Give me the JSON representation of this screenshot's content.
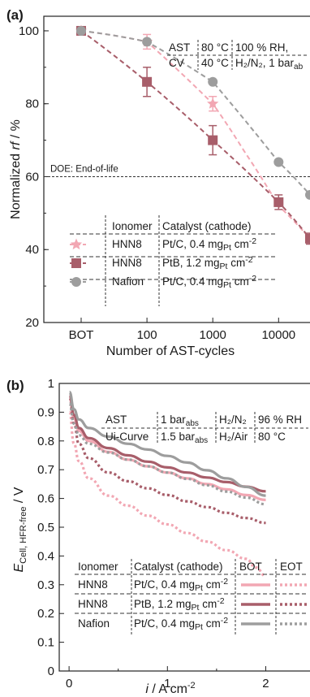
{
  "colors": {
    "hnn8_ptc": "#f2a7b3",
    "hnn8_ptb": "#a85e6a",
    "nafion": "#9d9d9d",
    "axis": "#222222"
  },
  "chart_data": [
    {
      "type": "scatter",
      "panel_label": "(a)",
      "xlabel": "Number of AST-cycles",
      "ylabel_italic": "rf",
      "ylabel_prefix": "Normalized ",
      "ylabel_suffix": " / %",
      "x_scale": "log",
      "x_tick_labels": [
        "BOT",
        "100",
        "1000",
        "10000"
      ],
      "x_ticks": [
        10,
        100,
        1000,
        10000
      ],
      "xlim": [
        10,
        30000
      ],
      "y_ticks": [
        20,
        40,
        60,
        80,
        100
      ],
      "ylim": [
        20,
        104
      ],
      "grid": false,
      "reference_line": {
        "y": 60,
        "label": "DOE: End-of-life"
      },
      "conditions": [
        [
          "AST",
          "80 °C",
          "100 % RH,"
        ],
        [
          "CV",
          "40 °C",
          "H2/N2, 1 bar_abs"
        ]
      ],
      "conditions_display": [
        [
          "AST",
          "80 °C",
          "100 % RH,"
        ],
        [
          "CV",
          "40 °C",
          "H₂/N₂, 1 bar"
        ]
      ],
      "conditions_sub": "ab",
      "legend_headers": [
        "Ionomer",
        "Catalyst (cathode)"
      ],
      "series": [
        {
          "name": "HNN8",
          "catalyst": "Pt/C, 0.4 mg",
          "catalyst_sub": "Pt",
          "catalyst_unit": " cm",
          "catalyst_sup": "-2",
          "marker": "star",
          "color_key": "hnn8_ptc",
          "x": [
            10,
            100,
            1000
          ],
          "y": [
            100,
            97,
            80
          ],
          "yerr": [
            0,
            2,
            2
          ],
          "fit": [
            [
              10,
              100
            ],
            [
              100,
              97
            ],
            [
              1000,
              80
            ],
            [
              3000,
              67
            ],
            [
              10000,
              52
            ],
            [
              30000,
              43
            ]
          ]
        },
        {
          "name": "HNN8",
          "catalyst": "PtB,  1.2 mg",
          "catalyst_sub": "Pt",
          "catalyst_unit": " cm",
          "catalyst_sup": "-2",
          "marker": "square",
          "color_key": "hnn8_ptb",
          "x": [
            10,
            100,
            1000,
            10000,
            30000
          ],
          "y": [
            100,
            86,
            70,
            53,
            43
          ],
          "yerr": [
            0,
            4,
            4,
            2,
            1.5
          ],
          "fit": [
            [
              10,
              100
            ],
            [
              100,
              86
            ],
            [
              1000,
              70
            ],
            [
              10000,
              53
            ],
            [
              30000,
              43
            ]
          ]
        },
        {
          "name": "Nafion",
          "catalyst": "Pt/C, 0.4 mg",
          "catalyst_sub": "Pt",
          "catalyst_unit": " cm",
          "catalyst_sup": "-2",
          "marker": "circle",
          "color_key": "nafion",
          "x": [
            10,
            100,
            1000,
            10000,
            30000
          ],
          "y": [
            100,
            97,
            86,
            64,
            55
          ],
          "yerr": [
            0,
            0,
            0,
            0,
            0
          ],
          "fit": [
            [
              10,
              100
            ],
            [
              100,
              97
            ],
            [
              1000,
              86
            ],
            [
              10000,
              64
            ],
            [
              30000,
              55
            ]
          ]
        }
      ]
    },
    {
      "type": "line",
      "panel_label": "(b)",
      "xlabel_italic": "i",
      "xlabel_suffix": " / A cm",
      "xlabel_sup": "-2",
      "ylabel_main": "E",
      "ylabel_sub": "Cell, HFR-free",
      "ylabel_suffix": " / V",
      "xlim": [
        -0.1,
        2.45
      ],
      "x_ticks": [
        0,
        1,
        2
      ],
      "ylim": [
        0,
        1.0
      ],
      "y_ticks": [
        0,
        0.1,
        0.2,
        0.3,
        0.4,
        0.5,
        0.6,
        0.7,
        0.8,
        0.9,
        1
      ],
      "y_tick_labels": [
        "0",
        "0.1",
        "0.2",
        "0.3",
        "0.4",
        "0.5",
        "0.6",
        "0.7",
        "0.8",
        "0.9",
        "1"
      ],
      "grid": false,
      "conditions": [
        [
          "AST",
          "1 bar_abs",
          "H2/N2",
          "96 % RH"
        ],
        [
          "Ui-Curve",
          "1.5 bar_abs",
          "H2/Air",
          "80 °C"
        ]
      ],
      "conditions_display": [
        [
          "AST",
          "1 bar",
          "H₂/N₂",
          "96 % RH"
        ],
        [
          "Ui-Curve",
          "1.5 bar",
          "H₂/Air",
          "80 °C"
        ]
      ],
      "conditions_sub": "abs",
      "legend_headers": [
        "Ionomer",
        "Catalyst (cathode)",
        "BOT",
        "EOT"
      ],
      "legend_rows": [
        {
          "ionomer": "HNN8",
          "catalyst": "Pt/C, 0.4 mg",
          "catalyst_sub": "Pt",
          "catalyst_unit": " cm",
          "catalyst_sup": "-2",
          "color_key": "hnn8_ptc"
        },
        {
          "ionomer": "HNN8",
          "catalyst": "PtB,  1.2 mg",
          "catalyst_sub": "Pt",
          "catalyst_unit": " cm",
          "catalyst_sup": "-2",
          "color_key": "hnn8_ptb"
        },
        {
          "ionomer": "Nafion",
          "catalyst": "Pt/C, 0.4 mg",
          "catalyst_sub": "Pt",
          "catalyst_unit": " cm",
          "catalyst_sup": "-2",
          "color_key": "nafion"
        }
      ],
      "series": [
        {
          "name": "HNN8 Pt/C BOT",
          "color_key": "hnn8_ptc",
          "dash": false,
          "x": [
            0.005,
            0.05,
            0.1,
            0.2,
            0.4,
            0.6,
            0.8,
            1.0,
            1.2,
            1.4,
            1.6,
            1.8,
            2.0
          ],
          "y": [
            0.95,
            0.88,
            0.835,
            0.8,
            0.762,
            0.735,
            0.712,
            0.69,
            0.67,
            0.65,
            0.632,
            0.612,
            0.595
          ]
        },
        {
          "name": "HNN8 Pt/C EOT",
          "color_key": "hnn8_ptc",
          "dash": true,
          "x": [
            0.005,
            0.05,
            0.1,
            0.2,
            0.4,
            0.6,
            0.8,
            1.0,
            1.2,
            1.4,
            1.6,
            1.8,
            1.9,
            2.0
          ],
          "y": [
            0.9,
            0.79,
            0.73,
            0.67,
            0.61,
            0.575,
            0.54,
            0.51,
            0.48,
            0.45,
            0.42,
            0.39,
            0.36,
            0.33
          ]
        },
        {
          "name": "HNN8 PtB BOT",
          "color_key": "hnn8_ptb",
          "dash": false,
          "x": [
            0.005,
            0.05,
            0.1,
            0.2,
            0.4,
            0.6,
            0.8,
            1.0,
            1.2,
            1.4,
            1.6,
            1.8,
            2.0
          ],
          "y": [
            0.96,
            0.89,
            0.845,
            0.81,
            0.775,
            0.75,
            0.728,
            0.708,
            0.69,
            0.673,
            0.657,
            0.641,
            0.625
          ]
        },
        {
          "name": "HNN8 PtB EOT",
          "color_key": "hnn8_ptb",
          "dash": true,
          "x": [
            0.005,
            0.05,
            0.1,
            0.2,
            0.4,
            0.6,
            0.8,
            1.0,
            1.2,
            1.4,
            1.6,
            1.8,
            2.0
          ],
          "y": [
            0.95,
            0.86,
            0.79,
            0.74,
            0.69,
            0.66,
            0.635,
            0.612,
            0.59,
            0.57,
            0.55,
            0.532,
            0.515
          ]
        },
        {
          "name": "Nafion BOT",
          "color_key": "nafion",
          "dash": false,
          "x": [
            0.005,
            0.05,
            0.1,
            0.2,
            0.4,
            0.6,
            0.8,
            1.0,
            1.2,
            1.4,
            1.6,
            1.8,
            2.0
          ],
          "y": [
            0.97,
            0.91,
            0.875,
            0.845,
            0.815,
            0.79,
            0.77,
            0.748,
            0.725,
            0.698,
            0.67,
            0.64,
            0.61
          ]
        },
        {
          "name": "Nafion EOT",
          "color_key": "nafion",
          "dash": true,
          "x": [
            0.005,
            0.05,
            0.1,
            0.2,
            0.4,
            0.6,
            0.8,
            1.0,
            1.2,
            1.4,
            1.6,
            1.8,
            2.0
          ],
          "y": [
            0.93,
            0.86,
            0.82,
            0.79,
            0.76,
            0.735,
            0.712,
            0.69,
            0.668,
            0.646,
            0.624,
            0.603,
            0.58
          ]
        }
      ]
    }
  ]
}
